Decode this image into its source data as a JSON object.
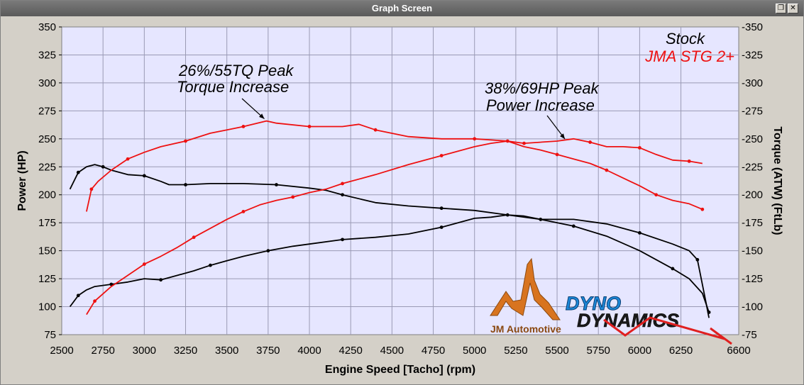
{
  "window": {
    "title": "Graph Screen",
    "restore_glyph": "❐",
    "close_glyph": "✕"
  },
  "chart_data": {
    "type": "line",
    "xlabel": "Engine Speed [Tacho] (rpm)",
    "ylabel_left": "Power (HP)",
    "ylabel_right": "Torque (ATW) (FtLb)",
    "xlim": [
      2500,
      6600
    ],
    "ylim": [
      75,
      350
    ],
    "x_ticks": [
      2500,
      2750,
      3000,
      3250,
      3500,
      3750,
      4000,
      4250,
      4500,
      4750,
      5000,
      5250,
      5500,
      5750,
      6000,
      6250,
      6600
    ],
    "y_ticks": [
      75,
      100,
      125,
      150,
      175,
      200,
      225,
      250,
      275,
      300,
      325,
      350
    ],
    "grid": true,
    "legend_placement": "top-right",
    "colors": {
      "stock": "#000000",
      "stage": "#ee1111",
      "plot_bg": "#e6e6ff",
      "grid": "#9a9ab4"
    },
    "legend": [
      {
        "label": "Stock",
        "color": "#000000"
      },
      {
        "label": "JMA STG 2+",
        "color": "#ee1111"
      }
    ],
    "annotations": [
      {
        "lines": [
          "26%/55TQ Peak",
          "Torque Increase"
        ],
        "arrow_to": [
          3740,
          266
        ]
      },
      {
        "lines": [
          "38%/69HP Peak",
          "Power Increase"
        ],
        "arrow_to": [
          5560,
          248
        ]
      }
    ],
    "series": [
      {
        "name": "Stock",
        "kind": "torque",
        "color": "#000000",
        "x": [
          2550,
          2600,
          2650,
          2700,
          2750,
          2800,
          2900,
          3000,
          3100,
          3150,
          3250,
          3400,
          3600,
          3800,
          4000,
          4100,
          4200,
          4400,
          4600,
          4800,
          5000,
          5200,
          5400,
          5600,
          5800,
          6000,
          6200,
          6300,
          6350,
          6400,
          6420
        ],
        "y": [
          205,
          220,
          225,
          227,
          225,
          222,
          218,
          217,
          212,
          209,
          209,
          210,
          210,
          209,
          206,
          204,
          200,
          193,
          190,
          188,
          186,
          182,
          178,
          178,
          174,
          166,
          156,
          150,
          142,
          105,
          90
        ]
      },
      {
        "name": "Stock",
        "kind": "power",
        "color": "#000000",
        "x": [
          2550,
          2600,
          2650,
          2700,
          2800,
          2900,
          3000,
          3100,
          3200,
          3300,
          3400,
          3500,
          3600,
          3750,
          3900,
          4000,
          4200,
          4400,
          4600,
          4800,
          5000,
          5100,
          5200,
          5300,
          5400,
          5600,
          5800,
          6000,
          6200,
          6300,
          6380,
          6420
        ],
        "y": [
          100,
          110,
          115,
          118,
          120,
          122,
          125,
          124,
          128,
          132,
          137,
          141,
          145,
          150,
          154,
          156,
          160,
          162,
          165,
          171,
          179,
          180,
          182,
          181,
          178,
          172,
          163,
          150,
          134,
          125,
          112,
          95
        ]
      },
      {
        "name": "JMA STG 2+",
        "kind": "torque",
        "color": "#ee1111",
        "x": [
          2650,
          2680,
          2720,
          2800,
          2900,
          3000,
          3100,
          3250,
          3400,
          3500,
          3600,
          3740,
          3800,
          4000,
          4200,
          4300,
          4400,
          4600,
          4800,
          5000,
          5100,
          5200,
          5300,
          5500,
          5600,
          5700,
          5800,
          5900,
          6000,
          6100,
          6200,
          6300,
          6380
        ],
        "y": [
          185,
          205,
          212,
          222,
          232,
          238,
          243,
          248,
          255,
          258,
          261,
          266,
          264,
          261,
          261,
          263,
          258,
          252,
          250,
          250,
          249,
          248,
          246,
          248,
          250,
          247,
          243,
          243,
          242,
          236,
          231,
          230,
          228
        ]
      },
      {
        "name": "JMA STG 2+",
        "kind": "power",
        "color": "#ee1111",
        "x": [
          2650,
          2700,
          2800,
          2900,
          3000,
          3100,
          3200,
          3300,
          3400,
          3500,
          3600,
          3700,
          3800,
          3900,
          4000,
          4100,
          4200,
          4400,
          4600,
          4800,
          5000,
          5100,
          5200,
          5300,
          5400,
          5500,
          5600,
          5700,
          5800,
          5900,
          6000,
          6100,
          6200,
          6300,
          6380
        ],
        "y": [
          93,
          105,
          118,
          128,
          138,
          145,
          153,
          162,
          170,
          178,
          185,
          191,
          195,
          198,
          202,
          205,
          210,
          218,
          227,
          235,
          243,
          246,
          248,
          243,
          240,
          236,
          232,
          228,
          222,
          215,
          208,
          200,
          195,
          192,
          187
        ]
      }
    ]
  },
  "logos": {
    "jm": "JM Automotive",
    "dyno_top": "DYNO",
    "dyno_bottom": "DYNAMICS"
  }
}
